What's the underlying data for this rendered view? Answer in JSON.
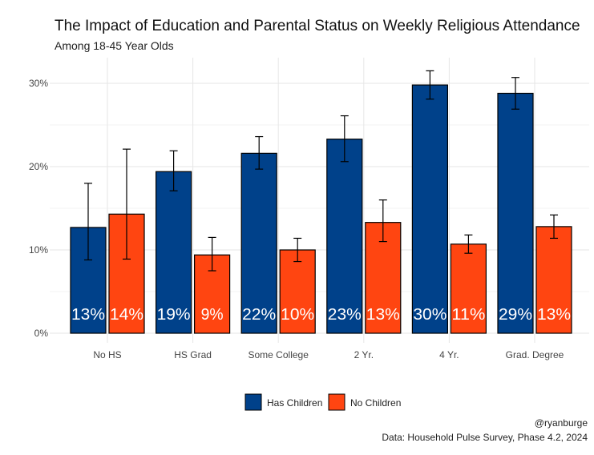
{
  "chart_data": {
    "type": "bar",
    "title": "The Impact of Education and Parental Status on Weekly Religious Attendance",
    "subtitle": "Among 18-45 Year Olds",
    "xlabel": "",
    "ylabel": "",
    "ylim": [
      0,
      31.5
    ],
    "yticks": [
      0,
      10,
      20,
      30
    ],
    "ytick_labels": [
      "0%",
      "10%",
      "20%",
      "30%"
    ],
    "grid": true,
    "legend_position": "bottom",
    "categories": [
      "No HS",
      "HS Grad",
      "Some College",
      "2 Yr.",
      "4 Yr.",
      "Grad. Degree"
    ],
    "series": [
      {
        "name": "Has Children",
        "color": "#00418a",
        "values": [
          12.7,
          19.4,
          21.6,
          23.3,
          29.8,
          28.8
        ],
        "labels": [
          "13%",
          "19%",
          "22%",
          "23%",
          "30%",
          "29%"
        ],
        "ci_low": [
          8.8,
          17.1,
          19.7,
          20.6,
          28.1,
          26.9
        ],
        "ci_high": [
          18.0,
          21.9,
          23.6,
          26.1,
          31.5,
          30.7
        ]
      },
      {
        "name": "No Children",
        "color": "#ff4511",
        "values": [
          14.3,
          9.4,
          10.0,
          13.3,
          10.7,
          12.8
        ],
        "labels": [
          "14%",
          "9%",
          "10%",
          "13%",
          "11%",
          "13%"
        ],
        "ci_low": [
          8.9,
          7.5,
          8.6,
          11.0,
          9.6,
          11.4
        ],
        "ci_high": [
          22.1,
          11.5,
          11.4,
          16.0,
          11.8,
          14.2
        ]
      }
    ],
    "caption_lines": [
      "@ryanburge",
      "Data: Household Pulse Survey, Phase 4.2, 2024"
    ]
  }
}
